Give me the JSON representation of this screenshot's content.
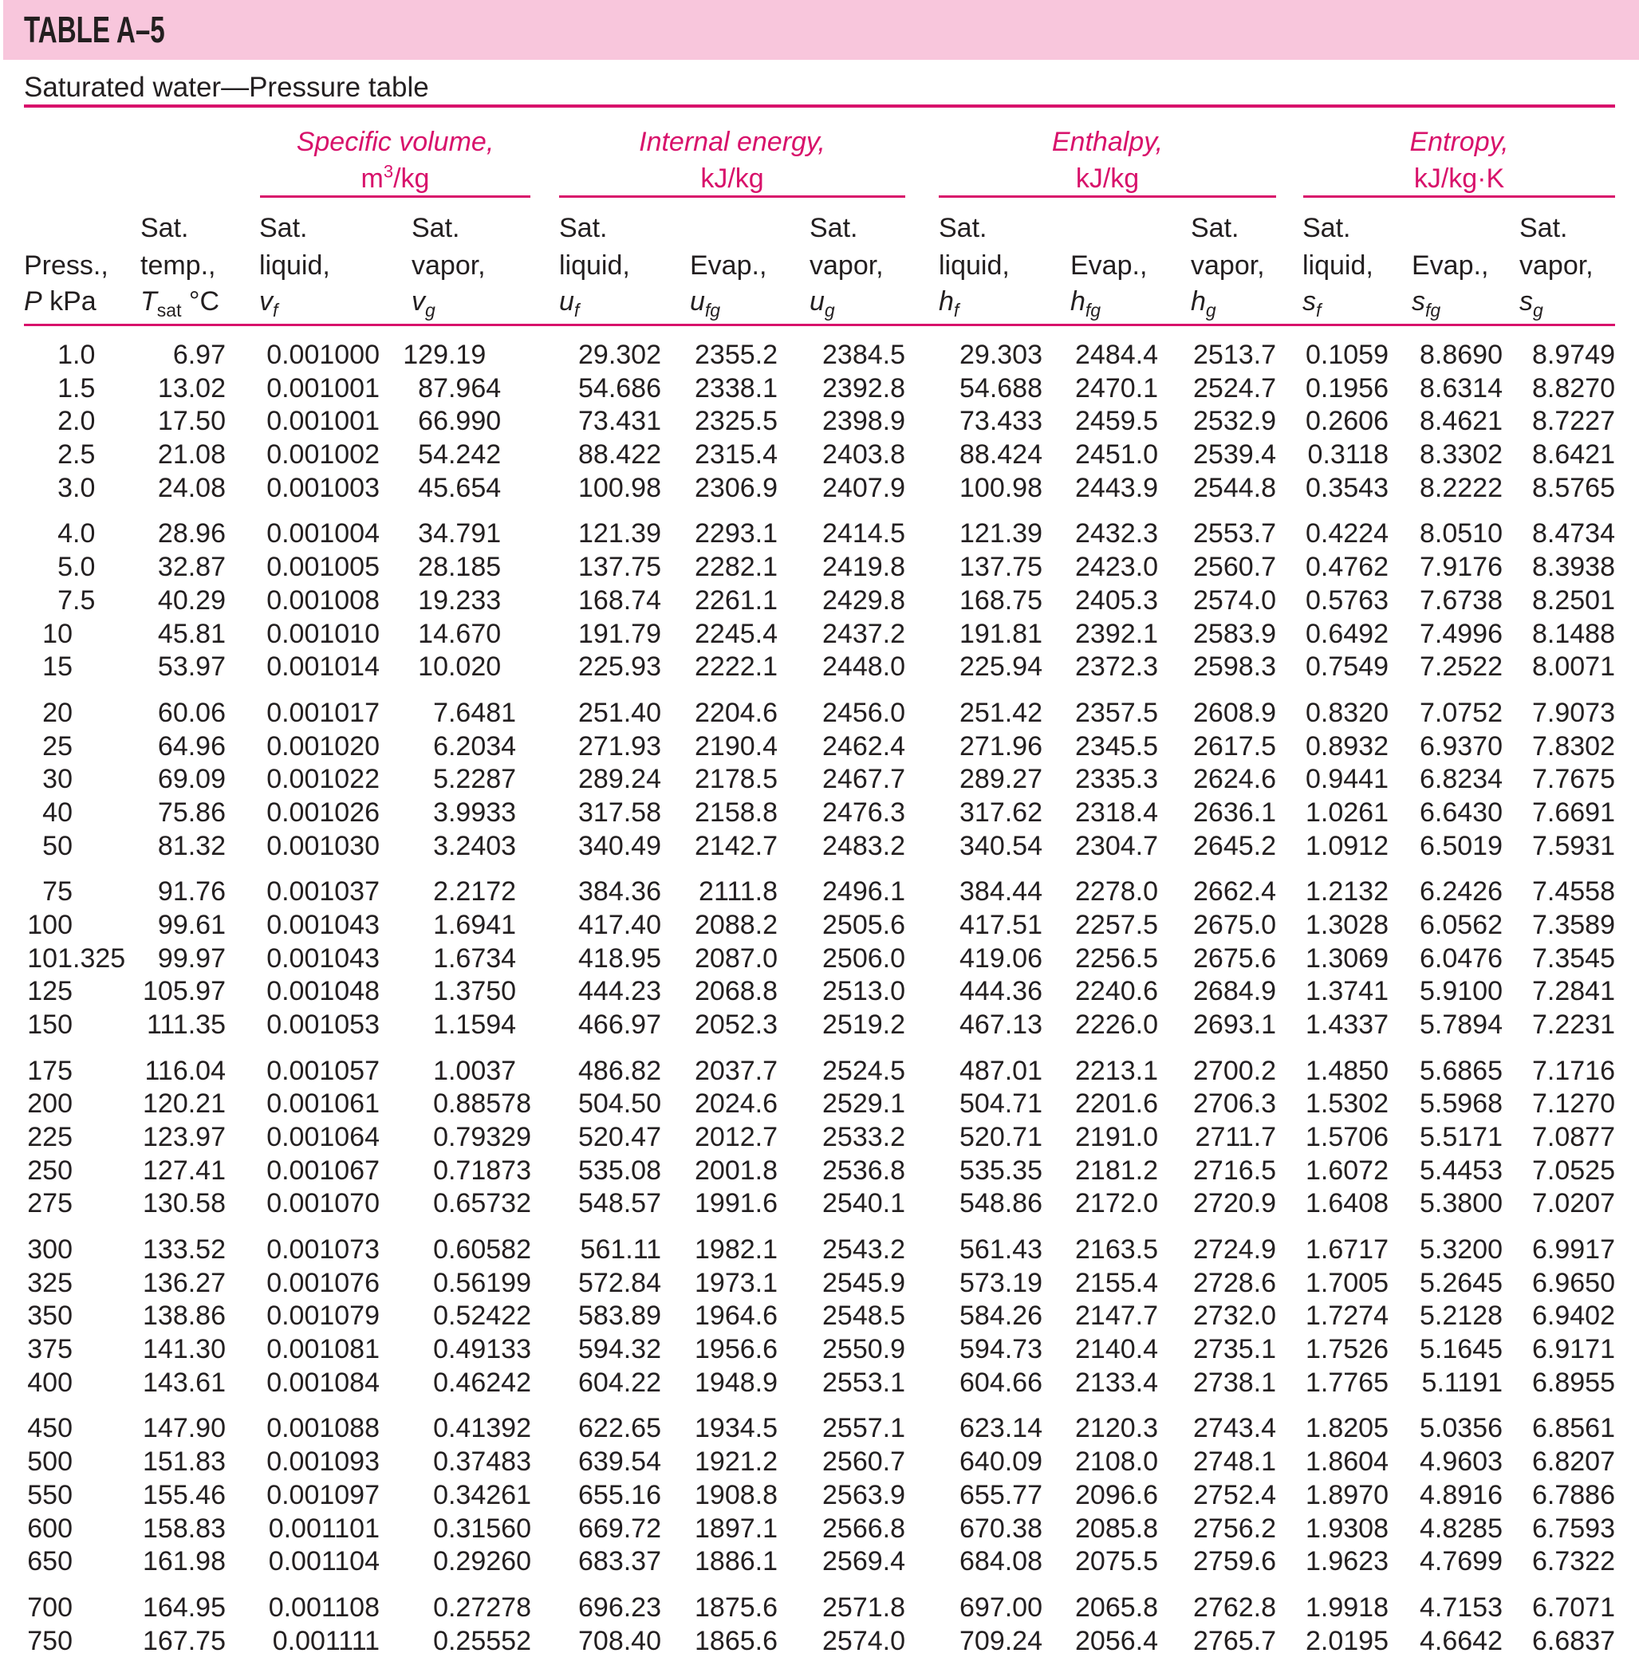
{
  "title": "TABLE A–5",
  "subtitle": "Saturated water—Pressure table",
  "colors": {
    "accent": "#d8126b",
    "band": "#f8c6dc",
    "text": "#231f20"
  },
  "groups": [
    {
      "label": "Specific volume,",
      "unit_base": "m",
      "unit_sup": "3",
      "unit_rest": "/kg"
    },
    {
      "label": "Internal energy,",
      "unit": "kJ/kg"
    },
    {
      "label": "Enthalpy,",
      "unit": "kJ/kg"
    },
    {
      "label": "Entropy,",
      "unit": "kJ/kg·K"
    }
  ],
  "columns": [
    {
      "l1": "",
      "l2": "Press.,",
      "sym": "P",
      "sub": "",
      "unit": " kPa"
    },
    {
      "l1": "Sat.",
      "l2": "temp.,",
      "sym": "T",
      "sub": "sat",
      "unit": " °C"
    },
    {
      "l1": "Sat.",
      "l2": "liquid,",
      "sym": "v",
      "sub": "f",
      "unit": ""
    },
    {
      "l1": "Sat.",
      "l2": "vapor,",
      "sym": "v",
      "sub": "g",
      "unit": ""
    },
    {
      "l1": "Sat.",
      "l2": "liquid,",
      "sym": "u",
      "sub": "f",
      "unit": ""
    },
    {
      "l1": "",
      "l2": "Evap.,",
      "sym": "u",
      "sub": "fg",
      "unit": ""
    },
    {
      "l1": "Sat.",
      "l2": "vapor,",
      "sym": "u",
      "sub": "g",
      "unit": ""
    },
    {
      "l1": "Sat.",
      "l2": "liquid,",
      "sym": "h",
      "sub": "f",
      "unit": ""
    },
    {
      "l1": "",
      "l2": "Evap.,",
      "sym": "h",
      "sub": "fg",
      "unit": ""
    },
    {
      "l1": "Sat.",
      "l2": "vapor,",
      "sym": "h",
      "sub": "g",
      "unit": ""
    },
    {
      "l1": "Sat.",
      "l2": "liquid,",
      "sym": "s",
      "sub": "f",
      "unit": ""
    },
    {
      "l1": "",
      "l2": "Evap.,",
      "sym": "s",
      "sub": "fg",
      "unit": ""
    },
    {
      "l1": "Sat.",
      "l2": "vapor,",
      "sym": "s",
      "sub": "g",
      "unit": ""
    }
  ],
  "rows": [
    [
      "1.0",
      "6.97",
      "0.001000",
      "129.19",
      "29.302",
      "2355.2",
      "2384.5",
      "29.303",
      "2484.4",
      "2513.7",
      "0.1059",
      "8.8690",
      "8.9749"
    ],
    [
      "1.5",
      "13.02",
      "0.001001",
      "87.964",
      "54.686",
      "2338.1",
      "2392.8",
      "54.688",
      "2470.1",
      "2524.7",
      "0.1956",
      "8.6314",
      "8.8270"
    ],
    [
      "2.0",
      "17.50",
      "0.001001",
      "66.990",
      "73.431",
      "2325.5",
      "2398.9",
      "73.433",
      "2459.5",
      "2532.9",
      "0.2606",
      "8.4621",
      "8.7227"
    ],
    [
      "2.5",
      "21.08",
      "0.001002",
      "54.242",
      "88.422",
      "2315.4",
      "2403.8",
      "88.424",
      "2451.0",
      "2539.4",
      "0.3118",
      "8.3302",
      "8.6421"
    ],
    [
      "3.0",
      "24.08",
      "0.001003",
      "45.654",
      "100.98",
      "2306.9",
      "2407.9",
      "100.98",
      "2443.9",
      "2544.8",
      "0.3543",
      "8.2222",
      "8.5765"
    ],
    [
      "4.0",
      "28.96",
      "0.001004",
      "34.791",
      "121.39",
      "2293.1",
      "2414.5",
      "121.39",
      "2432.3",
      "2553.7",
      "0.4224",
      "8.0510",
      "8.4734"
    ],
    [
      "5.0",
      "32.87",
      "0.001005",
      "28.185",
      "137.75",
      "2282.1",
      "2419.8",
      "137.75",
      "2423.0",
      "2560.7",
      "0.4762",
      "7.9176",
      "8.3938"
    ],
    [
      "7.5",
      "40.29",
      "0.001008",
      "19.233",
      "168.74",
      "2261.1",
      "2429.8",
      "168.75",
      "2405.3",
      "2574.0",
      "0.5763",
      "7.6738",
      "8.2501"
    ],
    [
      "10",
      "45.81",
      "0.001010",
      "14.670",
      "191.79",
      "2245.4",
      "2437.2",
      "191.81",
      "2392.1",
      "2583.9",
      "0.6492",
      "7.4996",
      "8.1488"
    ],
    [
      "15",
      "53.97",
      "0.001014",
      "10.020",
      "225.93",
      "2222.1",
      "2448.0",
      "225.94",
      "2372.3",
      "2598.3",
      "0.7549",
      "7.2522",
      "8.0071"
    ],
    [
      "20",
      "60.06",
      "0.001017",
      "7.6481",
      "251.40",
      "2204.6",
      "2456.0",
      "251.42",
      "2357.5",
      "2608.9",
      "0.8320",
      "7.0752",
      "7.9073"
    ],
    [
      "25",
      "64.96",
      "0.001020",
      "6.2034",
      "271.93",
      "2190.4",
      "2462.4",
      "271.96",
      "2345.5",
      "2617.5",
      "0.8932",
      "6.9370",
      "7.8302"
    ],
    [
      "30",
      "69.09",
      "0.001022",
      "5.2287",
      "289.24",
      "2178.5",
      "2467.7",
      "289.27",
      "2335.3",
      "2624.6",
      "0.9441",
      "6.8234",
      "7.7675"
    ],
    [
      "40",
      "75.86",
      "0.001026",
      "3.9933",
      "317.58",
      "2158.8",
      "2476.3",
      "317.62",
      "2318.4",
      "2636.1",
      "1.0261",
      "6.6430",
      "7.6691"
    ],
    [
      "50",
      "81.32",
      "0.001030",
      "3.2403",
      "340.49",
      "2142.7",
      "2483.2",
      "340.54",
      "2304.7",
      "2645.2",
      "1.0912",
      "6.5019",
      "7.5931"
    ],
    [
      "75",
      "91.76",
      "0.001037",
      "2.2172",
      "384.36",
      "2111.8",
      "2496.1",
      "384.44",
      "2278.0",
      "2662.4",
      "1.2132",
      "6.2426",
      "7.4558"
    ],
    [
      "100",
      "99.61",
      "0.001043",
      "1.6941",
      "417.40",
      "2088.2",
      "2505.6",
      "417.51",
      "2257.5",
      "2675.0",
      "1.3028",
      "6.0562",
      "7.3589"
    ],
    [
      "101.325",
      "99.97",
      "0.001043",
      "1.6734",
      "418.95",
      "2087.0",
      "2506.0",
      "419.06",
      "2256.5",
      "2675.6",
      "1.3069",
      "6.0476",
      "7.3545"
    ],
    [
      "125",
      "105.97",
      "0.001048",
      "1.3750",
      "444.23",
      "2068.8",
      "2513.0",
      "444.36",
      "2240.6",
      "2684.9",
      "1.3741",
      "5.9100",
      "7.2841"
    ],
    [
      "150",
      "111.35",
      "0.001053",
      "1.1594",
      "466.97",
      "2052.3",
      "2519.2",
      "467.13",
      "2226.0",
      "2693.1",
      "1.4337",
      "5.7894",
      "7.2231"
    ],
    [
      "175",
      "116.04",
      "0.001057",
      "1.0037",
      "486.82",
      "2037.7",
      "2524.5",
      "487.01",
      "2213.1",
      "2700.2",
      "1.4850",
      "5.6865",
      "7.1716"
    ],
    [
      "200",
      "120.21",
      "0.001061",
      "0.88578",
      "504.50",
      "2024.6",
      "2529.1",
      "504.71",
      "2201.6",
      "2706.3",
      "1.5302",
      "5.5968",
      "7.1270"
    ],
    [
      "225",
      "123.97",
      "0.001064",
      "0.79329",
      "520.47",
      "2012.7",
      "2533.2",
      "520.71",
      "2191.0",
      "2711.7",
      "1.5706",
      "5.5171",
      "7.0877"
    ],
    [
      "250",
      "127.41",
      "0.001067",
      "0.71873",
      "535.08",
      "2001.8",
      "2536.8",
      "535.35",
      "2181.2",
      "2716.5",
      "1.6072",
      "5.4453",
      "7.0525"
    ],
    [
      "275",
      "130.58",
      "0.001070",
      "0.65732",
      "548.57",
      "1991.6",
      "2540.1",
      "548.86",
      "2172.0",
      "2720.9",
      "1.6408",
      "5.3800",
      "7.0207"
    ],
    [
      "300",
      "133.52",
      "0.001073",
      "0.60582",
      "561.11",
      "1982.1",
      "2543.2",
      "561.43",
      "2163.5",
      "2724.9",
      "1.6717",
      "5.3200",
      "6.9917"
    ],
    [
      "325",
      "136.27",
      "0.001076",
      "0.56199",
      "572.84",
      "1973.1",
      "2545.9",
      "573.19",
      "2155.4",
      "2728.6",
      "1.7005",
      "5.2645",
      "6.9650"
    ],
    [
      "350",
      "138.86",
      "0.001079",
      "0.52422",
      "583.89",
      "1964.6",
      "2548.5",
      "584.26",
      "2147.7",
      "2732.0",
      "1.7274",
      "5.2128",
      "6.9402"
    ],
    [
      "375",
      "141.30",
      "0.001081",
      "0.49133",
      "594.32",
      "1956.6",
      "2550.9",
      "594.73",
      "2140.4",
      "2735.1",
      "1.7526",
      "5.1645",
      "6.9171"
    ],
    [
      "400",
      "143.61",
      "0.001084",
      "0.46242",
      "604.22",
      "1948.9",
      "2553.1",
      "604.66",
      "2133.4",
      "2738.1",
      "1.7765",
      "5.1191",
      "6.8955"
    ],
    [
      "450",
      "147.90",
      "0.001088",
      "0.41392",
      "622.65",
      "1934.5",
      "2557.1",
      "623.14",
      "2120.3",
      "2743.4",
      "1.8205",
      "5.0356",
      "6.8561"
    ],
    [
      "500",
      "151.83",
      "0.001093",
      "0.37483",
      "639.54",
      "1921.2",
      "2560.7",
      "640.09",
      "2108.0",
      "2748.1",
      "1.8604",
      "4.9603",
      "6.8207"
    ],
    [
      "550",
      "155.46",
      "0.001097",
      "0.34261",
      "655.16",
      "1908.8",
      "2563.9",
      "655.77",
      "2096.6",
      "2752.4",
      "1.8970",
      "4.8916",
      "6.7886"
    ],
    [
      "600",
      "158.83",
      "0.001101",
      "0.31560",
      "669.72",
      "1897.1",
      "2566.8",
      "670.38",
      "2085.8",
      "2756.2",
      "1.9308",
      "4.8285",
      "6.7593"
    ],
    [
      "650",
      "161.98",
      "0.001104",
      "0.29260",
      "683.37",
      "1886.1",
      "2569.4",
      "684.08",
      "2075.5",
      "2759.6",
      "1.9623",
      "4.7699",
      "6.7322"
    ],
    [
      "700",
      "164.95",
      "0.001108",
      "0.27278",
      "696.23",
      "1875.6",
      "2571.8",
      "697.00",
      "2065.8",
      "2762.8",
      "1.9918",
      "4.7153",
      "6.7071"
    ],
    [
      "750",
      "167.75",
      "0.001111",
      "0.25552",
      "708.40",
      "1865.6",
      "2574.0",
      "709.24",
      "2056.4",
      "2765.7",
      "2.0195",
      "4.6642",
      "6.6837"
    ]
  ]
}
